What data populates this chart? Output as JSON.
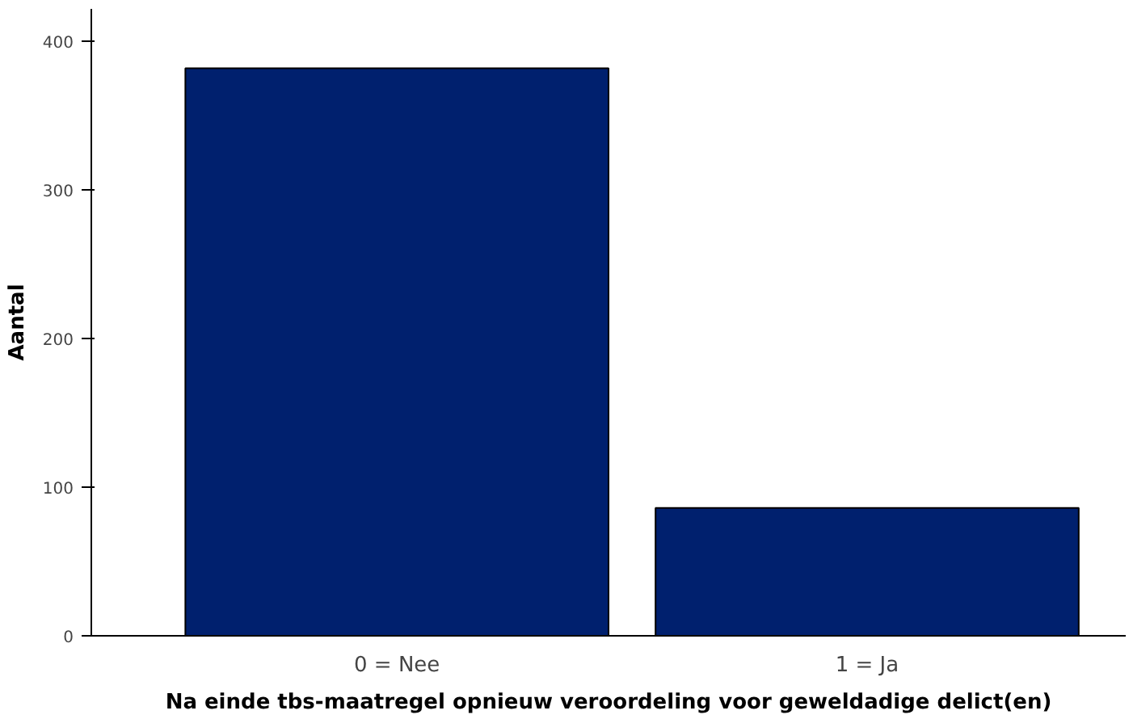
{
  "chart_data": {
    "type": "bar",
    "xlabel": "Na einde tbs-maatregel opnieuw veroordeling voor geweldadige delict(en)",
    "ylabel": "Aantal",
    "categories": [
      "0 = Nee",
      "1 = Ja"
    ],
    "values": [
      382,
      86
    ],
    "color": "#00206e",
    "ylim": [
      0,
      422
    ],
    "yticks": [
      0,
      100,
      200,
      300,
      400
    ],
    "grid": false
  }
}
